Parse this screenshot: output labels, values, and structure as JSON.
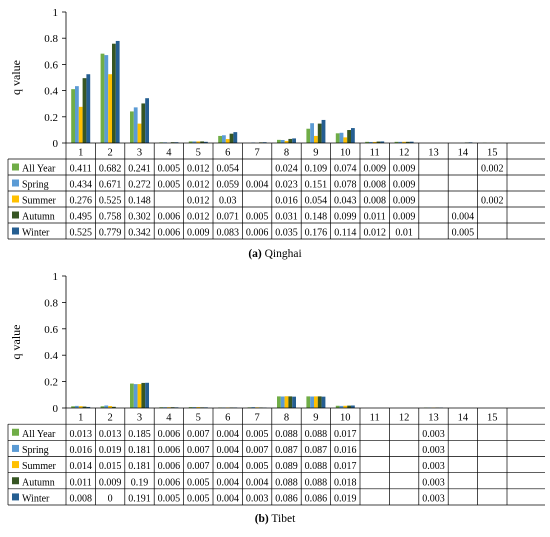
{
  "chart_data": [
    {
      "type": "bar",
      "title": "",
      "caption_label": "(a)",
      "caption_text": "Qinghai",
      "ylabel": "q value",
      "xlabel": "",
      "ylim": [
        0,
        1
      ],
      "yticks": [
        "0",
        "0.2",
        "0.4",
        "0.6",
        "0.8",
        "1"
      ],
      "categories": [
        "1",
        "2",
        "3",
        "4",
        "5",
        "6",
        "7",
        "8",
        "9",
        "10",
        "11",
        "12",
        "13",
        "14",
        "15"
      ],
      "series": [
        {
          "name": "All Year",
          "color": "#70ad47",
          "values": [
            0.411,
            0.682,
            0.241,
            0.005,
            0.012,
            0.054,
            null,
            0.024,
            0.109,
            0.074,
            0.009,
            0.009,
            null,
            null,
            0.002
          ],
          "labels": [
            "0.411",
            "0.682",
            "0.241",
            "0.005",
            "0.012",
            "0.054",
            "",
            "0.024",
            "0.109",
            "0.074",
            "0.009",
            "0.009",
            "",
            "",
            "0.002"
          ]
        },
        {
          "name": "Spring",
          "color": "#5b9bd5",
          "values": [
            0.434,
            0.671,
            0.272,
            0.005,
            0.012,
            0.059,
            0.004,
            0.023,
            0.151,
            0.078,
            0.008,
            0.009,
            null,
            null,
            null
          ],
          "labels": [
            "0.434",
            "0.671",
            "0.272",
            "0.005",
            "0.012",
            "0.059",
            "0.004",
            "0.023",
            "0.151",
            "0.078",
            "0.008",
            "0.009",
            "",
            "",
            ""
          ]
        },
        {
          "name": "Summer",
          "color": "#ffc000",
          "values": [
            0.276,
            0.525,
            0.148,
            null,
            0.012,
            0.03,
            null,
            0.016,
            0.054,
            0.043,
            0.008,
            0.009,
            null,
            null,
            0.002
          ],
          "labels": [
            "0.276",
            "0.525",
            "0.148",
            "",
            "0.012",
            "0.03",
            "",
            "0.016",
            "0.054",
            "0.043",
            "0.008",
            "0.009",
            "",
            "",
            "0.002"
          ]
        },
        {
          "name": "Autumn",
          "color": "#375623",
          "values": [
            0.495,
            0.758,
            0.302,
            0.006,
            0.012,
            0.071,
            0.005,
            0.031,
            0.148,
            0.099,
            0.011,
            0.009,
            null,
            0.004,
            null
          ],
          "labels": [
            "0.495",
            "0.758",
            "0.302",
            "0.006",
            "0.012",
            "0.071",
            "0.005",
            "0.031",
            "0.148",
            "0.099",
            "0.011",
            "0.009",
            "",
            "0.004",
            ""
          ]
        },
        {
          "name": "Winter",
          "color": "#255e91",
          "values": [
            0.525,
            0.779,
            0.342,
            0.006,
            0.009,
            0.083,
            0.006,
            0.035,
            0.176,
            0.114,
            0.012,
            0.01,
            null,
            0.005,
            null
          ],
          "labels": [
            "0.525",
            "0.779",
            "0.342",
            "0.006",
            "0.009",
            "0.083",
            "0.006",
            "0.035",
            "0.176",
            "0.114",
            "0.012",
            "0.01",
            "",
            "0.005",
            ""
          ]
        }
      ]
    },
    {
      "type": "bar",
      "title": "",
      "caption_label": "(b)",
      "caption_text": "Tibet",
      "ylabel": "q value",
      "xlabel": "",
      "ylim": [
        0,
        1
      ],
      "yticks": [
        "0",
        "0.2",
        "0.4",
        "0.6",
        "0.8",
        "1"
      ],
      "categories": [
        "1",
        "2",
        "3",
        "4",
        "5",
        "6",
        "7",
        "8",
        "9",
        "10",
        "11",
        "12",
        "13",
        "14",
        "15"
      ],
      "series": [
        {
          "name": "All Year",
          "color": "#70ad47",
          "values": [
            0.013,
            0.013,
            0.185,
            0.006,
            0.007,
            0.004,
            0.005,
            0.088,
            0.088,
            0.017,
            null,
            null,
            0.003,
            null,
            null
          ],
          "labels": [
            "0.013",
            "0.013",
            "0.185",
            "0.006",
            "0.007",
            "0.004",
            "0.005",
            "0.088",
            "0.088",
            "0.017",
            "",
            "",
            "0.003",
            "",
            ""
          ]
        },
        {
          "name": "Spring",
          "color": "#5b9bd5",
          "values": [
            0.016,
            0.019,
            0.181,
            0.006,
            0.007,
            0.004,
            0.007,
            0.087,
            0.087,
            0.016,
            null,
            null,
            0.003,
            null,
            null
          ],
          "labels": [
            "0.016",
            "0.019",
            "0.181",
            "0.006",
            "0.007",
            "0.004",
            "0.007",
            "0.087",
            "0.087",
            "0.016",
            "",
            "",
            "0.003",
            "",
            ""
          ]
        },
        {
          "name": "Summer",
          "color": "#ffc000",
          "values": [
            0.014,
            0.015,
            0.181,
            0.006,
            0.007,
            0.004,
            0.005,
            0.089,
            0.088,
            0.017,
            null,
            null,
            0.003,
            null,
            null
          ],
          "labels": [
            "0.014",
            "0.015",
            "0.181",
            "0.006",
            "0.007",
            "0.004",
            "0.005",
            "0.089",
            "0.088",
            "0.017",
            "",
            "",
            "0.003",
            "",
            ""
          ]
        },
        {
          "name": "Autumn",
          "color": "#375623",
          "values": [
            0.011,
            0.009,
            0.19,
            0.006,
            0.005,
            0.004,
            0.004,
            0.088,
            0.088,
            0.018,
            null,
            null,
            0.003,
            null,
            null
          ],
          "labels": [
            "0.011",
            "0.009",
            "0.19",
            "0.006",
            "0.005",
            "0.004",
            "0.004",
            "0.088",
            "0.088",
            "0.018",
            "",
            "",
            "0.003",
            "",
            ""
          ]
        },
        {
          "name": "Winter",
          "color": "#255e91",
          "values": [
            0.008,
            0,
            0.191,
            0.005,
            0.005,
            0.004,
            0.003,
            0.086,
            0.086,
            0.019,
            null,
            null,
            0.003,
            null,
            null
          ],
          "labels": [
            "0.008",
            "0",
            "0.191",
            "0.005",
            "0.005",
            "0.004",
            "0.003",
            "0.086",
            "0.086",
            "0.019",
            "",
            "",
            "0.003",
            "",
            ""
          ]
        }
      ]
    }
  ]
}
